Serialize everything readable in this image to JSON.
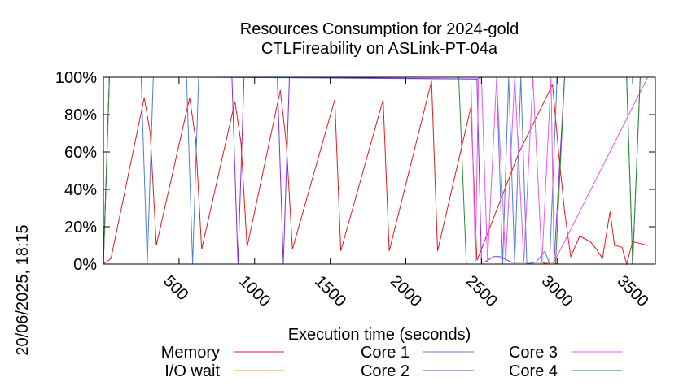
{
  "chart_data": {
    "type": "line",
    "title": "Resources Consumption for 2024-gold",
    "subtitle": "CTLFireability on ASLink-PT-04a",
    "xlabel": "Execution time (seconds)",
    "ylabel": "",
    "side_label": "20/06/2025, 18:15",
    "xlim": [
      0,
      3650
    ],
    "ylim": [
      0,
      100
    ],
    "x_ticks": [
      500,
      1000,
      1500,
      2000,
      2500,
      3000,
      3500
    ],
    "x_tick_labels": [
      "500",
      "1000",
      "1500",
      "2000",
      "2500",
      "3000",
      "3500"
    ],
    "y_ticks": [
      0,
      20,
      40,
      60,
      80,
      100
    ],
    "y_tick_labels": [
      "0%",
      "20%",
      "40%",
      "60%",
      "80%",
      "100%"
    ],
    "series": [
      {
        "name": "Memory",
        "color": "#e41a1c",
        "x": [
          0,
          50,
          270,
          310,
          350,
          570,
          610,
          650,
          870,
          910,
          950,
          1170,
          1210,
          1250,
          1530,
          1570,
          1850,
          1890,
          2170,
          2210,
          2430,
          2470,
          2500,
          2750,
          2970,
          3010,
          3050,
          3090,
          3150,
          3220,
          3260,
          3300,
          3350,
          3380,
          3430,
          3460,
          3500,
          3550,
          3600
        ],
        "y": [
          0,
          3,
          89,
          70,
          10,
          89,
          67,
          8,
          87,
          65,
          9,
          93,
          64,
          8,
          88,
          7,
          88,
          7,
          98,
          7,
          84,
          2,
          8,
          60,
          96,
          60,
          28,
          4,
          15,
          12,
          8,
          3,
          28,
          10,
          9,
          0,
          12,
          11,
          10
        ]
      },
      {
        "name": "I/O wait",
        "color": "#ffa500",
        "x": [
          2430,
          2900,
          2960,
          3000,
          3600
        ],
        "y": [
          0,
          0,
          1,
          0,
          0
        ]
      },
      {
        "name": "Core 1",
        "color": "#4f7fd4",
        "x": [
          0,
          40,
          250,
          290,
          330,
          550,
          590,
          630,
          2470,
          2500,
          2520,
          2600,
          2640,
          2680,
          2720,
          2760,
          2800,
          2860,
          2920,
          2950,
          3000,
          3040,
          3460,
          3500,
          3550,
          3600
        ],
        "y": [
          0,
          100,
          100,
          0,
          100,
          100,
          0,
          100,
          99,
          100,
          100,
          100,
          0,
          100,
          0,
          100,
          0,
          1,
          7,
          0,
          100,
          100,
          100,
          0,
          100,
          100
        ]
      },
      {
        "name": "Core 2",
        "color": "#8a2be2",
        "x": [
          0,
          40,
          850,
          890,
          930,
          1150,
          1190,
          1230,
          2470,
          2500,
          2520,
          2580,
          2620,
          2700,
          2760,
          2800,
          2900,
          2940,
          2980,
          3050,
          3600
        ],
        "y": [
          0,
          100,
          100,
          0,
          100,
          100,
          0,
          100,
          99,
          1,
          1,
          4,
          4,
          1,
          1,
          1,
          1,
          0,
          0,
          100,
          100
        ]
      },
      {
        "name": "Core 3",
        "color": "#e85ae8",
        "x": [
          0,
          2430,
          2460,
          2480,
          2500,
          2540,
          2600,
          2660,
          2720,
          2780,
          2840,
          2900,
          2960,
          2980,
          3600
        ],
        "y": [
          100,
          100,
          1,
          100,
          100,
          1,
          100,
          1,
          100,
          1,
          100,
          1,
          100,
          1,
          100
        ]
      },
      {
        "name": "Core 4",
        "color": "#2e8b2e",
        "x": [
          0,
          40,
          2350,
          2400,
          2440,
          2960,
          2990,
          3050,
          3460,
          3500,
          3550,
          3600
        ],
        "y": [
          0,
          100,
          100,
          0,
          0,
          0,
          0,
          100,
          100,
          0,
          100,
          100
        ]
      }
    ],
    "legend": {
      "placement": "bottom",
      "entries": [
        "Memory",
        "I/O wait",
        "Core 1",
        "Core 2",
        "Core 3",
        "Core 4"
      ]
    },
    "grid": false
  }
}
